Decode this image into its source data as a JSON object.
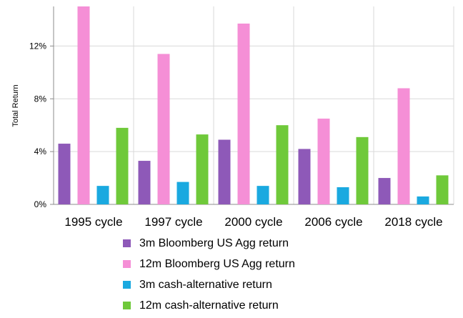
{
  "chart_data": {
    "type": "bar",
    "categories": [
      "1995 cycle",
      "1997 cycle",
      "2000 cycle",
      "2006 cycle",
      "2018 cycle"
    ],
    "series": [
      {
        "name": "3m Bloomberg US Agg return",
        "color": "#8e59b8",
        "values": [
          4.6,
          3.3,
          4.9,
          4.2,
          2.0
        ]
      },
      {
        "name": "12m Bloomberg US Agg return",
        "color": "#f58fd6",
        "values": [
          15.0,
          11.4,
          13.7,
          6.5,
          8.8
        ]
      },
      {
        "name": "3m cash-alternative return",
        "color": "#1aa9e0",
        "values": [
          1.4,
          1.7,
          1.4,
          1.3,
          0.6
        ]
      },
      {
        "name": "12m cash-alternative return",
        "color": "#6fc93a",
        "values": [
          5.8,
          5.3,
          6.0,
          5.1,
          2.2
        ]
      }
    ],
    "ylabel": "Total Return",
    "ylim": [
      0,
      15
    ],
    "yticks": [
      0,
      4,
      8,
      12
    ],
    "ytick_labels": [
      "0%",
      "4%",
      "8%",
      "12%"
    ],
    "grid": true,
    "legend_position": "bottom"
  }
}
